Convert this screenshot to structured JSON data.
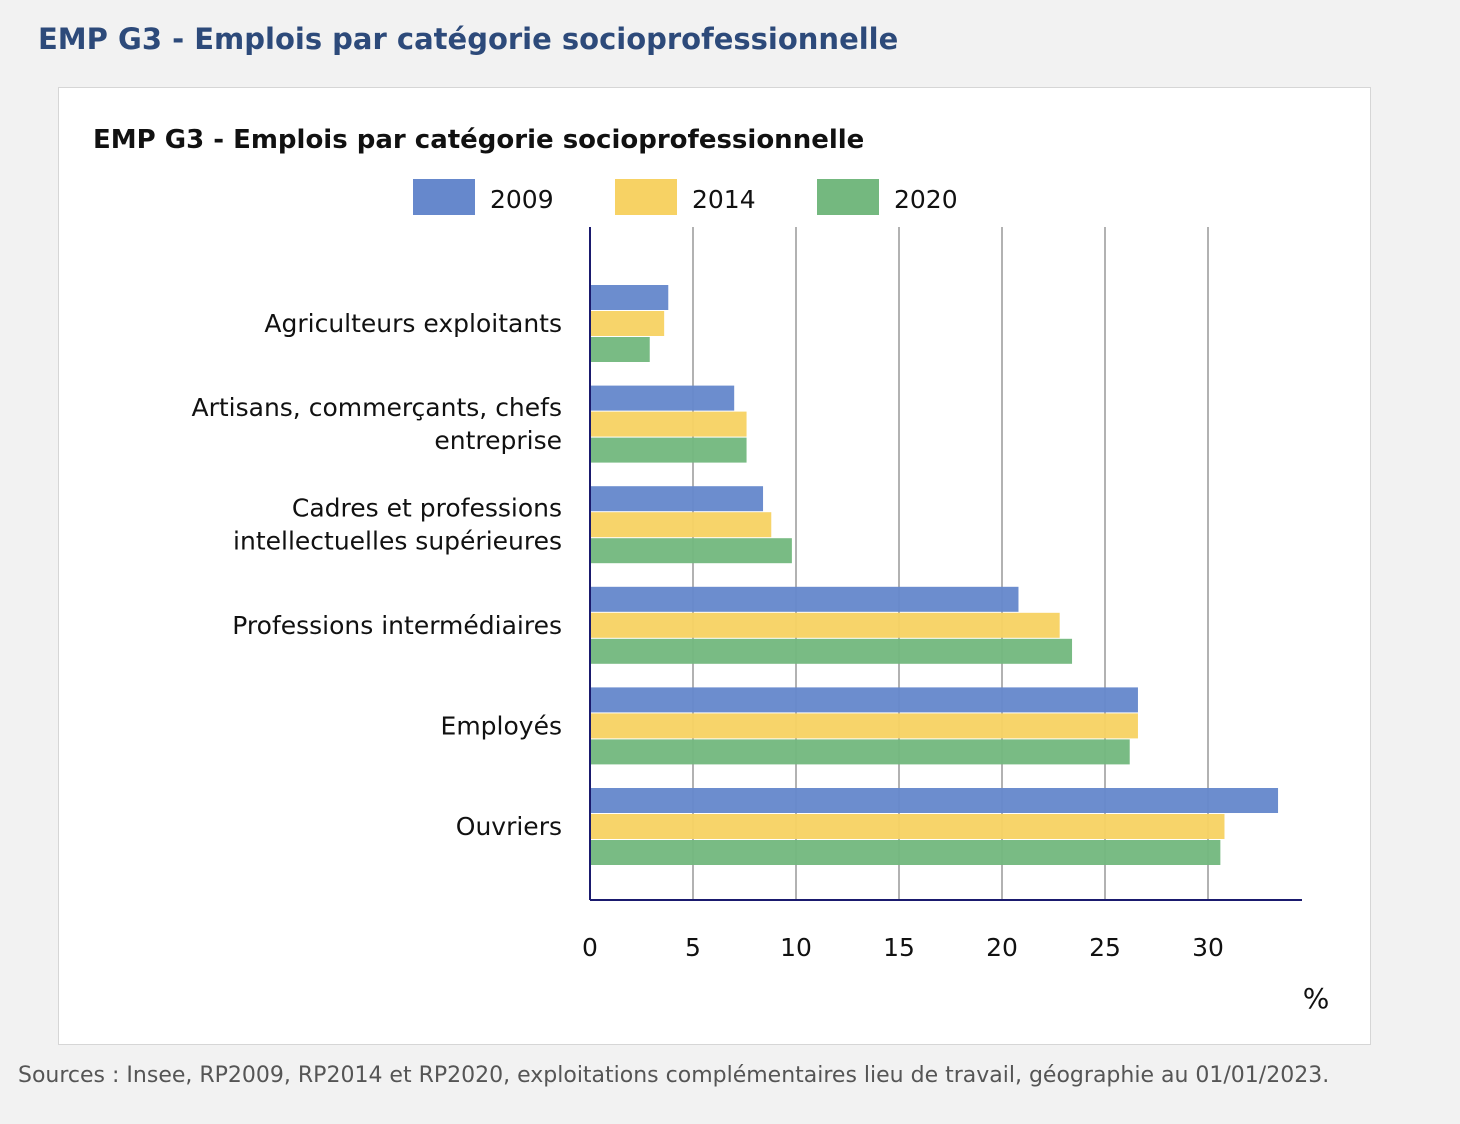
{
  "page": {
    "title": "EMP G3 - Emplois par catégorie socioprofessionnelle",
    "sources": "Sources : Insee, RP2009, RP2014 et RP2020, exploitations complémentaires lieu de travail, géographie au 01/01/2023."
  },
  "chart_data": {
    "type": "bar",
    "orientation": "horizontal",
    "title": "EMP G3 - Emplois par catégorie socioprofessionnelle",
    "unit_label": "%",
    "categories": [
      [
        "Agriculteurs exploitants"
      ],
      [
        "Artisans, commerçants, chefs",
        "entreprise"
      ],
      [
        "Cadres et professions",
        "intellectuelles supérieures"
      ],
      [
        "Professions intermédiaires"
      ],
      [
        "Employés"
      ],
      [
        "Ouvriers"
      ]
    ],
    "series": [
      {
        "name": "2009",
        "color": "#6688cc",
        "values": [
          3.8,
          7.0,
          8.4,
          20.8,
          26.6,
          33.4
        ]
      },
      {
        "name": "2014",
        "color": "#f7d264",
        "values": [
          3.6,
          7.6,
          8.8,
          22.8,
          26.6,
          30.8
        ]
      },
      {
        "name": "2020",
        "color": "#74b87f",
        "values": [
          2.9,
          7.6,
          9.8,
          23.4,
          26.2,
          30.6
        ]
      }
    ],
    "xlim": [
      0,
      34.6
    ],
    "xticks": [
      0,
      5,
      10,
      15,
      20,
      25,
      30
    ],
    "grid": true,
    "legend_position": "top"
  }
}
